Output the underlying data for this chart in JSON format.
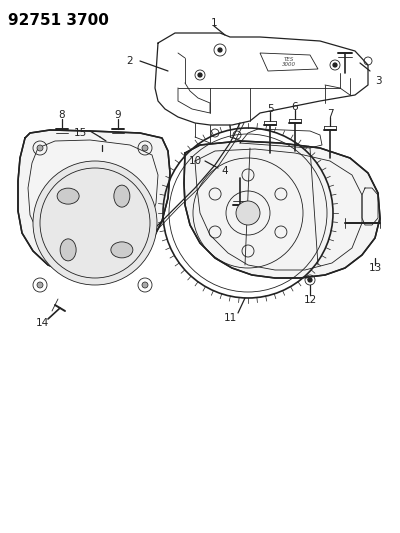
{
  "title": "92751 3700",
  "bg_color": "#ffffff",
  "line_color": "#222222",
  "label_color": "#000000",
  "title_fontsize": 11,
  "label_fontsize": 7.5,
  "figsize": [
    4.0,
    5.33
  ],
  "dpi": 100
}
